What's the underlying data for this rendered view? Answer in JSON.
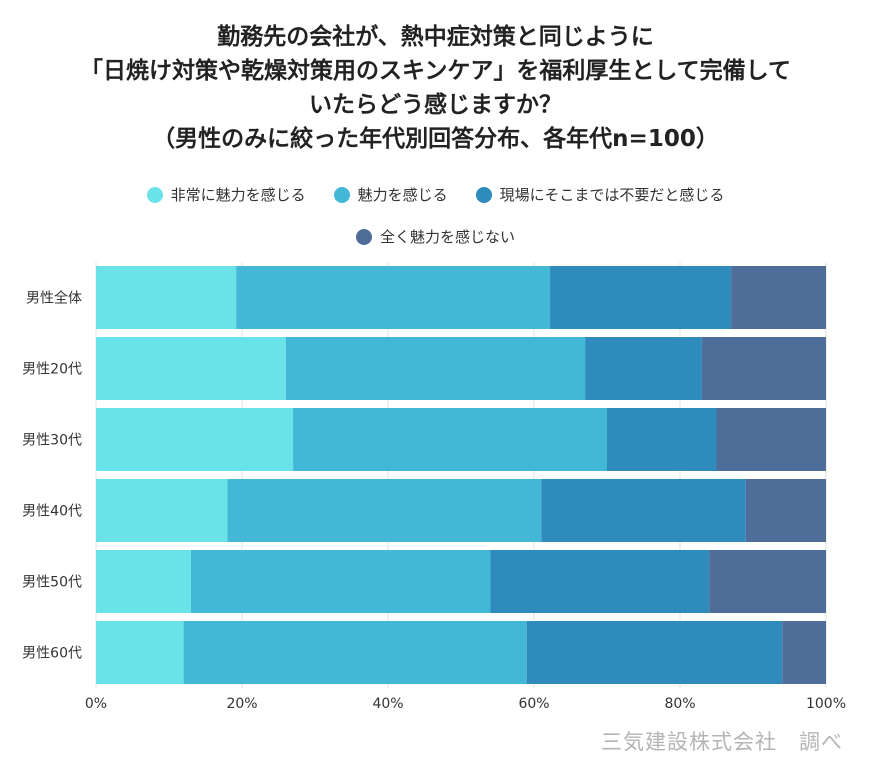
{
  "chart_data": {
    "type": "bar",
    "orientation": "horizontal",
    "stacked": true,
    "title": [
      "勤務先の会社が、熱中症対策と同じように",
      "「日焼け対策や乾燥対策用のスキンケア」を福利厚生として完備して",
      "いたらどう感じますか？",
      "（男性のみに絞った年代別回答分布、各年代n=100）"
    ],
    "categories": [
      "男性全体",
      "男性20代",
      "男性30代",
      "男性40代",
      "男性50代",
      "男性60代"
    ],
    "series": [
      {
        "name": "非常に魅力を感じる",
        "color": "#6ae3e8",
        "values": [
          19.2,
          26,
          27,
          18,
          13,
          12
        ]
      },
      {
        "name": "魅力を感じる",
        "color": "#42b8d6",
        "values": [
          43,
          41,
          43,
          43,
          41,
          47
        ]
      },
      {
        "name": "現場にそこまでは不要だと感じる",
        "color": "#2e8bbb",
        "values": [
          24.8,
          16,
          15,
          28,
          30,
          35
        ]
      },
      {
        "name": "全く魅力を感じない",
        "color": "#4f6d99",
        "values": [
          13,
          17,
          15,
          11,
          16,
          6
        ]
      }
    ],
    "xlim": [
      0,
      100
    ],
    "xticks": [
      "0%",
      "20%",
      "40%",
      "60%",
      "80%",
      "100%"
    ],
    "grid": true,
    "legend_position": "top"
  },
  "source": "三気建設株式会社　調べ"
}
